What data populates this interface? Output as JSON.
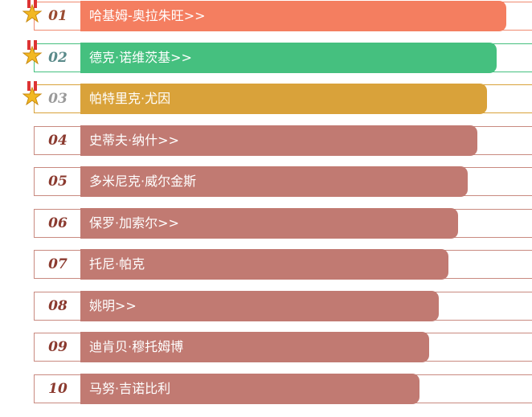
{
  "items": [
    {
      "rank": "01",
      "name": "哈基姆-奥拉朱旺>>"
    },
    {
      "rank": "02",
      "name": "德克·诺维茨基>>"
    },
    {
      "rank": "03",
      "name": "帕特里克·尤因"
    },
    {
      "rank": "04",
      "name": "史蒂夫·纳什>>"
    },
    {
      "rank": "05",
      "name": "多米尼克·威尔金斯"
    },
    {
      "rank": "06",
      "name": "保罗·加索尔>>"
    },
    {
      "rank": "07",
      "name": "托尼·帕克"
    },
    {
      "rank": "08",
      "name": "姚明>>"
    },
    {
      "rank": "09",
      "name": "迪肯贝·穆托姆博"
    },
    {
      "rank": "10",
      "name": "马努·吉诺比利"
    }
  ]
}
